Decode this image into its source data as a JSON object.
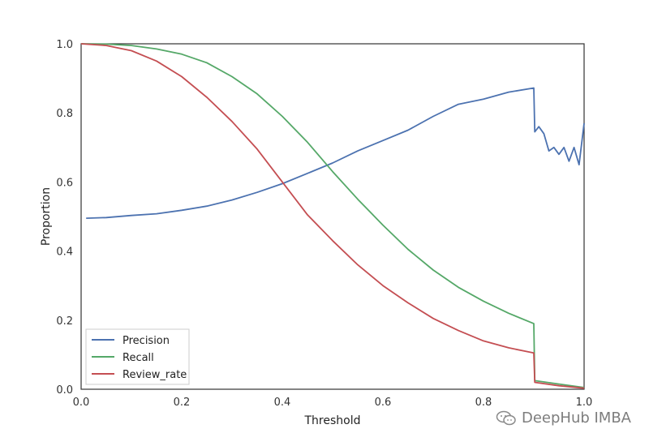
{
  "chart_data": {
    "type": "line",
    "xlabel": "Threshold",
    "ylabel": "Proportion",
    "xlim": [
      0.0,
      1.0
    ],
    "ylim": [
      0.0,
      1.0
    ],
    "x_ticks": [
      "0.0",
      "0.2",
      "0.4",
      "0.6",
      "0.8",
      "1.0"
    ],
    "y_ticks": [
      "0.0",
      "0.2",
      "0.4",
      "0.6",
      "0.8",
      "1.0"
    ],
    "grid": false,
    "legend_position": "bottom-left",
    "series": [
      {
        "name": "Precision",
        "color": "#4c72b0",
        "points": [
          [
            0.01,
            0.495
          ],
          [
            0.05,
            0.497
          ],
          [
            0.1,
            0.503
          ],
          [
            0.15,
            0.508
          ],
          [
            0.2,
            0.518
          ],
          [
            0.25,
            0.53
          ],
          [
            0.3,
            0.548
          ],
          [
            0.35,
            0.57
          ],
          [
            0.4,
            0.595
          ],
          [
            0.45,
            0.625
          ],
          [
            0.5,
            0.655
          ],
          [
            0.55,
            0.69
          ],
          [
            0.6,
            0.72
          ],
          [
            0.65,
            0.75
          ],
          [
            0.7,
            0.79
          ],
          [
            0.75,
            0.825
          ],
          [
            0.8,
            0.84
          ],
          [
            0.85,
            0.86
          ],
          [
            0.9,
            0.872
          ],
          [
            0.902,
            0.745
          ],
          [
            0.91,
            0.76
          ],
          [
            0.92,
            0.74
          ],
          [
            0.93,
            0.69
          ],
          [
            0.94,
            0.7
          ],
          [
            0.95,
            0.68
          ],
          [
            0.96,
            0.7
          ],
          [
            0.97,
            0.66
          ],
          [
            0.98,
            0.7
          ],
          [
            0.99,
            0.65
          ],
          [
            1.0,
            0.77
          ]
        ]
      },
      {
        "name": "Recall",
        "color": "#55a868",
        "points": [
          [
            0.0,
            1.0
          ],
          [
            0.05,
            0.999
          ],
          [
            0.1,
            0.995
          ],
          [
            0.15,
            0.985
          ],
          [
            0.2,
            0.97
          ],
          [
            0.25,
            0.945
          ],
          [
            0.3,
            0.905
          ],
          [
            0.35,
            0.855
          ],
          [
            0.4,
            0.79
          ],
          [
            0.45,
            0.715
          ],
          [
            0.5,
            0.63
          ],
          [
            0.55,
            0.55
          ],
          [
            0.6,
            0.475
          ],
          [
            0.65,
            0.405
          ],
          [
            0.7,
            0.345
          ],
          [
            0.75,
            0.295
          ],
          [
            0.8,
            0.255
          ],
          [
            0.85,
            0.22
          ],
          [
            0.9,
            0.19
          ],
          [
            0.902,
            0.025
          ],
          [
            0.95,
            0.015
          ],
          [
            1.0,
            0.005
          ]
        ]
      },
      {
        "name": "Review_rate",
        "color": "#c44e52",
        "points": [
          [
            0.0,
            1.0
          ],
          [
            0.05,
            0.995
          ],
          [
            0.1,
            0.98
          ],
          [
            0.15,
            0.95
          ],
          [
            0.2,
            0.905
          ],
          [
            0.25,
            0.845
          ],
          [
            0.3,
            0.775
          ],
          [
            0.35,
            0.695
          ],
          [
            0.4,
            0.6
          ],
          [
            0.45,
            0.505
          ],
          [
            0.5,
            0.43
          ],
          [
            0.55,
            0.36
          ],
          [
            0.6,
            0.3
          ],
          [
            0.65,
            0.25
          ],
          [
            0.7,
            0.205
          ],
          [
            0.75,
            0.17
          ],
          [
            0.8,
            0.14
          ],
          [
            0.85,
            0.12
          ],
          [
            0.9,
            0.105
          ],
          [
            0.902,
            0.02
          ],
          [
            0.95,
            0.01
          ],
          [
            1.0,
            0.003
          ]
        ]
      }
    ]
  },
  "watermark": {
    "text": "DeepHub IMBA",
    "icon": "wechat-icon"
  }
}
